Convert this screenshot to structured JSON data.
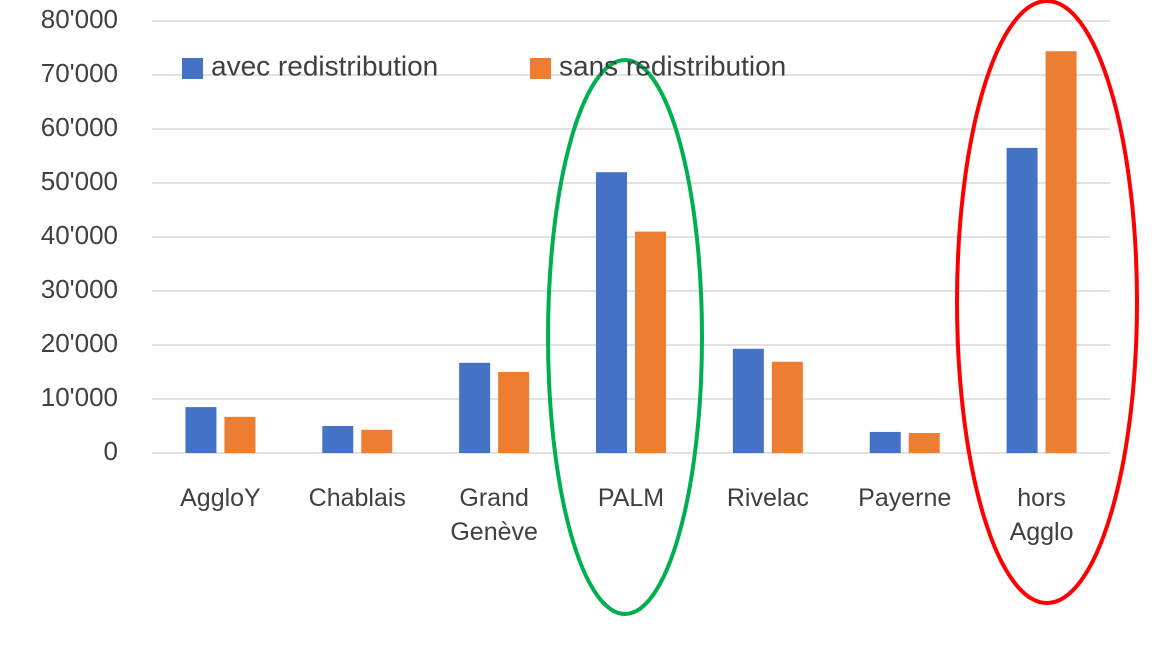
{
  "chart_data": {
    "type": "bar",
    "categories": [
      "AggloY",
      "Chablais",
      "Grand Genève",
      "PALM",
      "Rivelac",
      "Payerne",
      "hors Agglo"
    ],
    "series": [
      {
        "name": "avec redistribution",
        "color": "#4472c4",
        "values": [
          8500,
          5000,
          16700,
          52000,
          19300,
          3900,
          56500
        ]
      },
      {
        "name": "sans redistribution",
        "color": "#ed7d31",
        "values": [
          6700,
          4300,
          15000,
          41000,
          16900,
          3700,
          74400
        ]
      }
    ],
    "ylim": [
      0,
      80000
    ],
    "yticks": [
      0,
      {
        "value": 10000,
        "label": "10'000"
      },
      {
        "value": 20000,
        "label": "20'000"
      },
      {
        "value": 30000,
        "label": "30'000"
      },
      {
        "value": 40000,
        "label": "40'000"
      },
      {
        "value": 50000,
        "label": "50'000"
      },
      {
        "value": 60000,
        "label": "60'000"
      },
      {
        "value": 70000,
        "label": "70'000"
      },
      {
        "value": 80000,
        "label": "80'000"
      }
    ],
    "grid": true,
    "legend": "top-left"
  }
}
